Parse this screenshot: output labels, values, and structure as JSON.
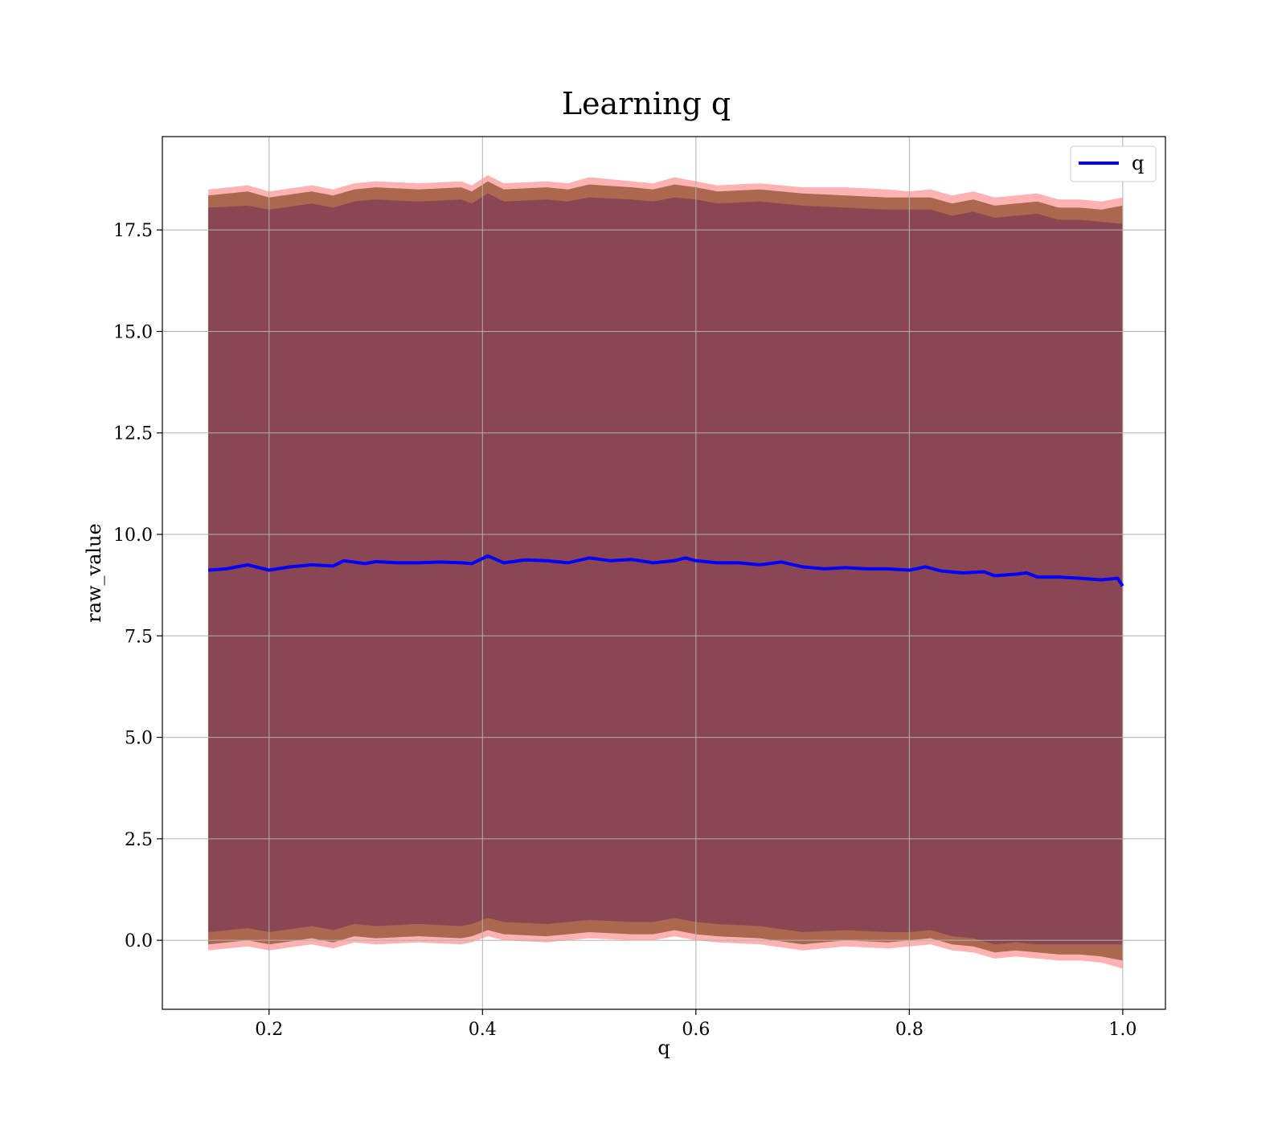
{
  "chart_data": {
    "type": "line",
    "title": "Learning q",
    "xlabel": "q",
    "ylabel": "raw_value",
    "xlim": [
      0.1,
      1.04
    ],
    "ylim": [
      -1.7,
      19.8
    ],
    "xticks": [
      0.2,
      0.4,
      0.6,
      0.8,
      1.0
    ],
    "xtick_labels": [
      "0.2",
      "0.4",
      "0.6",
      "0.8",
      "1.0"
    ],
    "yticks": [
      0.0,
      2.5,
      5.0,
      7.5,
      10.0,
      12.5,
      15.0,
      17.5
    ],
    "ytick_labels": [
      "0.0",
      "2.5",
      "5.0",
      "7.5",
      "10.0",
      "12.5",
      "15.0",
      "17.5"
    ],
    "grid": true,
    "legend_position": "top-right",
    "series": [
      {
        "name": "q",
        "color": "#0000ff",
        "x": [
          0.143,
          0.16,
          0.18,
          0.2,
          0.22,
          0.24,
          0.26,
          0.27,
          0.29,
          0.3,
          0.32,
          0.34,
          0.36,
          0.38,
          0.39,
          0.405,
          0.42,
          0.44,
          0.46,
          0.48,
          0.5,
          0.52,
          0.54,
          0.56,
          0.58,
          0.59,
          0.6,
          0.62,
          0.64,
          0.66,
          0.68,
          0.7,
          0.72,
          0.74,
          0.76,
          0.78,
          0.8,
          0.815,
          0.83,
          0.85,
          0.87,
          0.88,
          0.9,
          0.91,
          0.92,
          0.94,
          0.96,
          0.98,
          0.995,
          1.0
        ],
        "y": [
          9.12,
          9.15,
          9.25,
          9.12,
          9.2,
          9.25,
          9.22,
          9.35,
          9.28,
          9.33,
          9.3,
          9.3,
          9.32,
          9.3,
          9.28,
          9.47,
          9.3,
          9.37,
          9.35,
          9.3,
          9.42,
          9.35,
          9.38,
          9.3,
          9.35,
          9.42,
          9.35,
          9.3,
          9.3,
          9.25,
          9.32,
          9.2,
          9.15,
          9.18,
          9.15,
          9.15,
          9.12,
          9.2,
          9.1,
          9.05,
          9.08,
          8.98,
          9.02,
          9.05,
          8.95,
          8.95,
          8.92,
          8.88,
          8.92,
          8.73
        ]
      }
    ],
    "bands": [
      {
        "color": "#ff7f7f",
        "x": [
          0.143,
          0.18,
          0.2,
          0.24,
          0.26,
          0.28,
          0.3,
          0.34,
          0.38,
          0.39,
          0.405,
          0.42,
          0.46,
          0.48,
          0.5,
          0.54,
          0.56,
          0.58,
          0.6,
          0.62,
          0.66,
          0.7,
          0.74,
          0.78,
          0.8,
          0.82,
          0.84,
          0.86,
          0.88,
          0.9,
          0.92,
          0.94,
          0.96,
          0.98,
          1.0
        ],
        "upper": [
          18.5,
          18.6,
          18.45,
          18.6,
          18.5,
          18.65,
          18.7,
          18.65,
          18.7,
          18.6,
          18.85,
          18.65,
          18.7,
          18.65,
          18.8,
          18.7,
          18.65,
          18.8,
          18.7,
          18.6,
          18.65,
          18.55,
          18.55,
          18.5,
          18.45,
          18.5,
          18.35,
          18.45,
          18.3,
          18.35,
          18.4,
          18.25,
          18.25,
          18.2,
          18.3
        ],
        "lower": [
          -0.25,
          -0.15,
          -0.25,
          -0.1,
          -0.2,
          -0.05,
          -0.1,
          -0.05,
          -0.1,
          -0.05,
          0.1,
          0.0,
          -0.05,
          0.0,
          0.05,
          0.0,
          0.0,
          0.1,
          0.0,
          -0.05,
          -0.1,
          -0.25,
          -0.15,
          -0.2,
          -0.15,
          -0.1,
          -0.25,
          -0.3,
          -0.45,
          -0.4,
          -0.45,
          -0.5,
          -0.5,
          -0.55,
          -0.7
        ]
      },
      {
        "color": "#8c4a28",
        "x": [
          0.143,
          0.18,
          0.2,
          0.24,
          0.26,
          0.28,
          0.3,
          0.34,
          0.38,
          0.39,
          0.405,
          0.42,
          0.46,
          0.48,
          0.5,
          0.54,
          0.56,
          0.58,
          0.6,
          0.62,
          0.66,
          0.7,
          0.74,
          0.78,
          0.8,
          0.82,
          0.84,
          0.86,
          0.88,
          0.9,
          0.92,
          0.94,
          0.96,
          0.98,
          1.0
        ],
        "upper": [
          18.35,
          18.45,
          18.3,
          18.45,
          18.35,
          18.5,
          18.55,
          18.5,
          18.55,
          18.45,
          18.7,
          18.5,
          18.55,
          18.5,
          18.62,
          18.55,
          18.5,
          18.62,
          18.55,
          18.45,
          18.5,
          18.4,
          18.35,
          18.3,
          18.3,
          18.3,
          18.15,
          18.25,
          18.1,
          18.15,
          18.2,
          18.05,
          18.05,
          18.0,
          18.1
        ],
        "lower": [
          -0.1,
          0.0,
          -0.1,
          0.05,
          -0.05,
          0.1,
          0.05,
          0.1,
          0.05,
          0.1,
          0.25,
          0.15,
          0.1,
          0.15,
          0.2,
          0.15,
          0.15,
          0.25,
          0.15,
          0.1,
          0.05,
          -0.1,
          0.0,
          -0.05,
          0.0,
          0.05,
          -0.1,
          -0.15,
          -0.3,
          -0.25,
          -0.3,
          -0.35,
          -0.35,
          -0.4,
          -0.5
        ]
      },
      {
        "color": "#7d3c55",
        "x": [
          0.143,
          0.18,
          0.2,
          0.24,
          0.26,
          0.28,
          0.3,
          0.34,
          0.38,
          0.39,
          0.405,
          0.42,
          0.46,
          0.48,
          0.5,
          0.54,
          0.56,
          0.58,
          0.6,
          0.62,
          0.66,
          0.7,
          0.74,
          0.78,
          0.8,
          0.82,
          0.84,
          0.86,
          0.88,
          0.9,
          0.92,
          0.94,
          0.96,
          0.98,
          1.0
        ],
        "upper": [
          18.05,
          18.1,
          18.0,
          18.15,
          18.05,
          18.2,
          18.25,
          18.2,
          18.25,
          18.15,
          18.4,
          18.2,
          18.25,
          18.2,
          18.3,
          18.25,
          18.2,
          18.3,
          18.25,
          18.15,
          18.2,
          18.1,
          18.05,
          18.0,
          18.0,
          18.0,
          17.85,
          17.95,
          17.8,
          17.85,
          17.9,
          17.75,
          17.75,
          17.7,
          17.65
        ],
        "lower": [
          0.2,
          0.3,
          0.2,
          0.35,
          0.25,
          0.4,
          0.35,
          0.4,
          0.35,
          0.4,
          0.55,
          0.45,
          0.4,
          0.45,
          0.5,
          0.45,
          0.45,
          0.55,
          0.45,
          0.4,
          0.35,
          0.2,
          0.25,
          0.2,
          0.2,
          0.25,
          0.1,
          0.05,
          -0.1,
          -0.05,
          -0.1,
          -0.1,
          -0.1,
          -0.1,
          -0.1
        ]
      }
    ]
  }
}
